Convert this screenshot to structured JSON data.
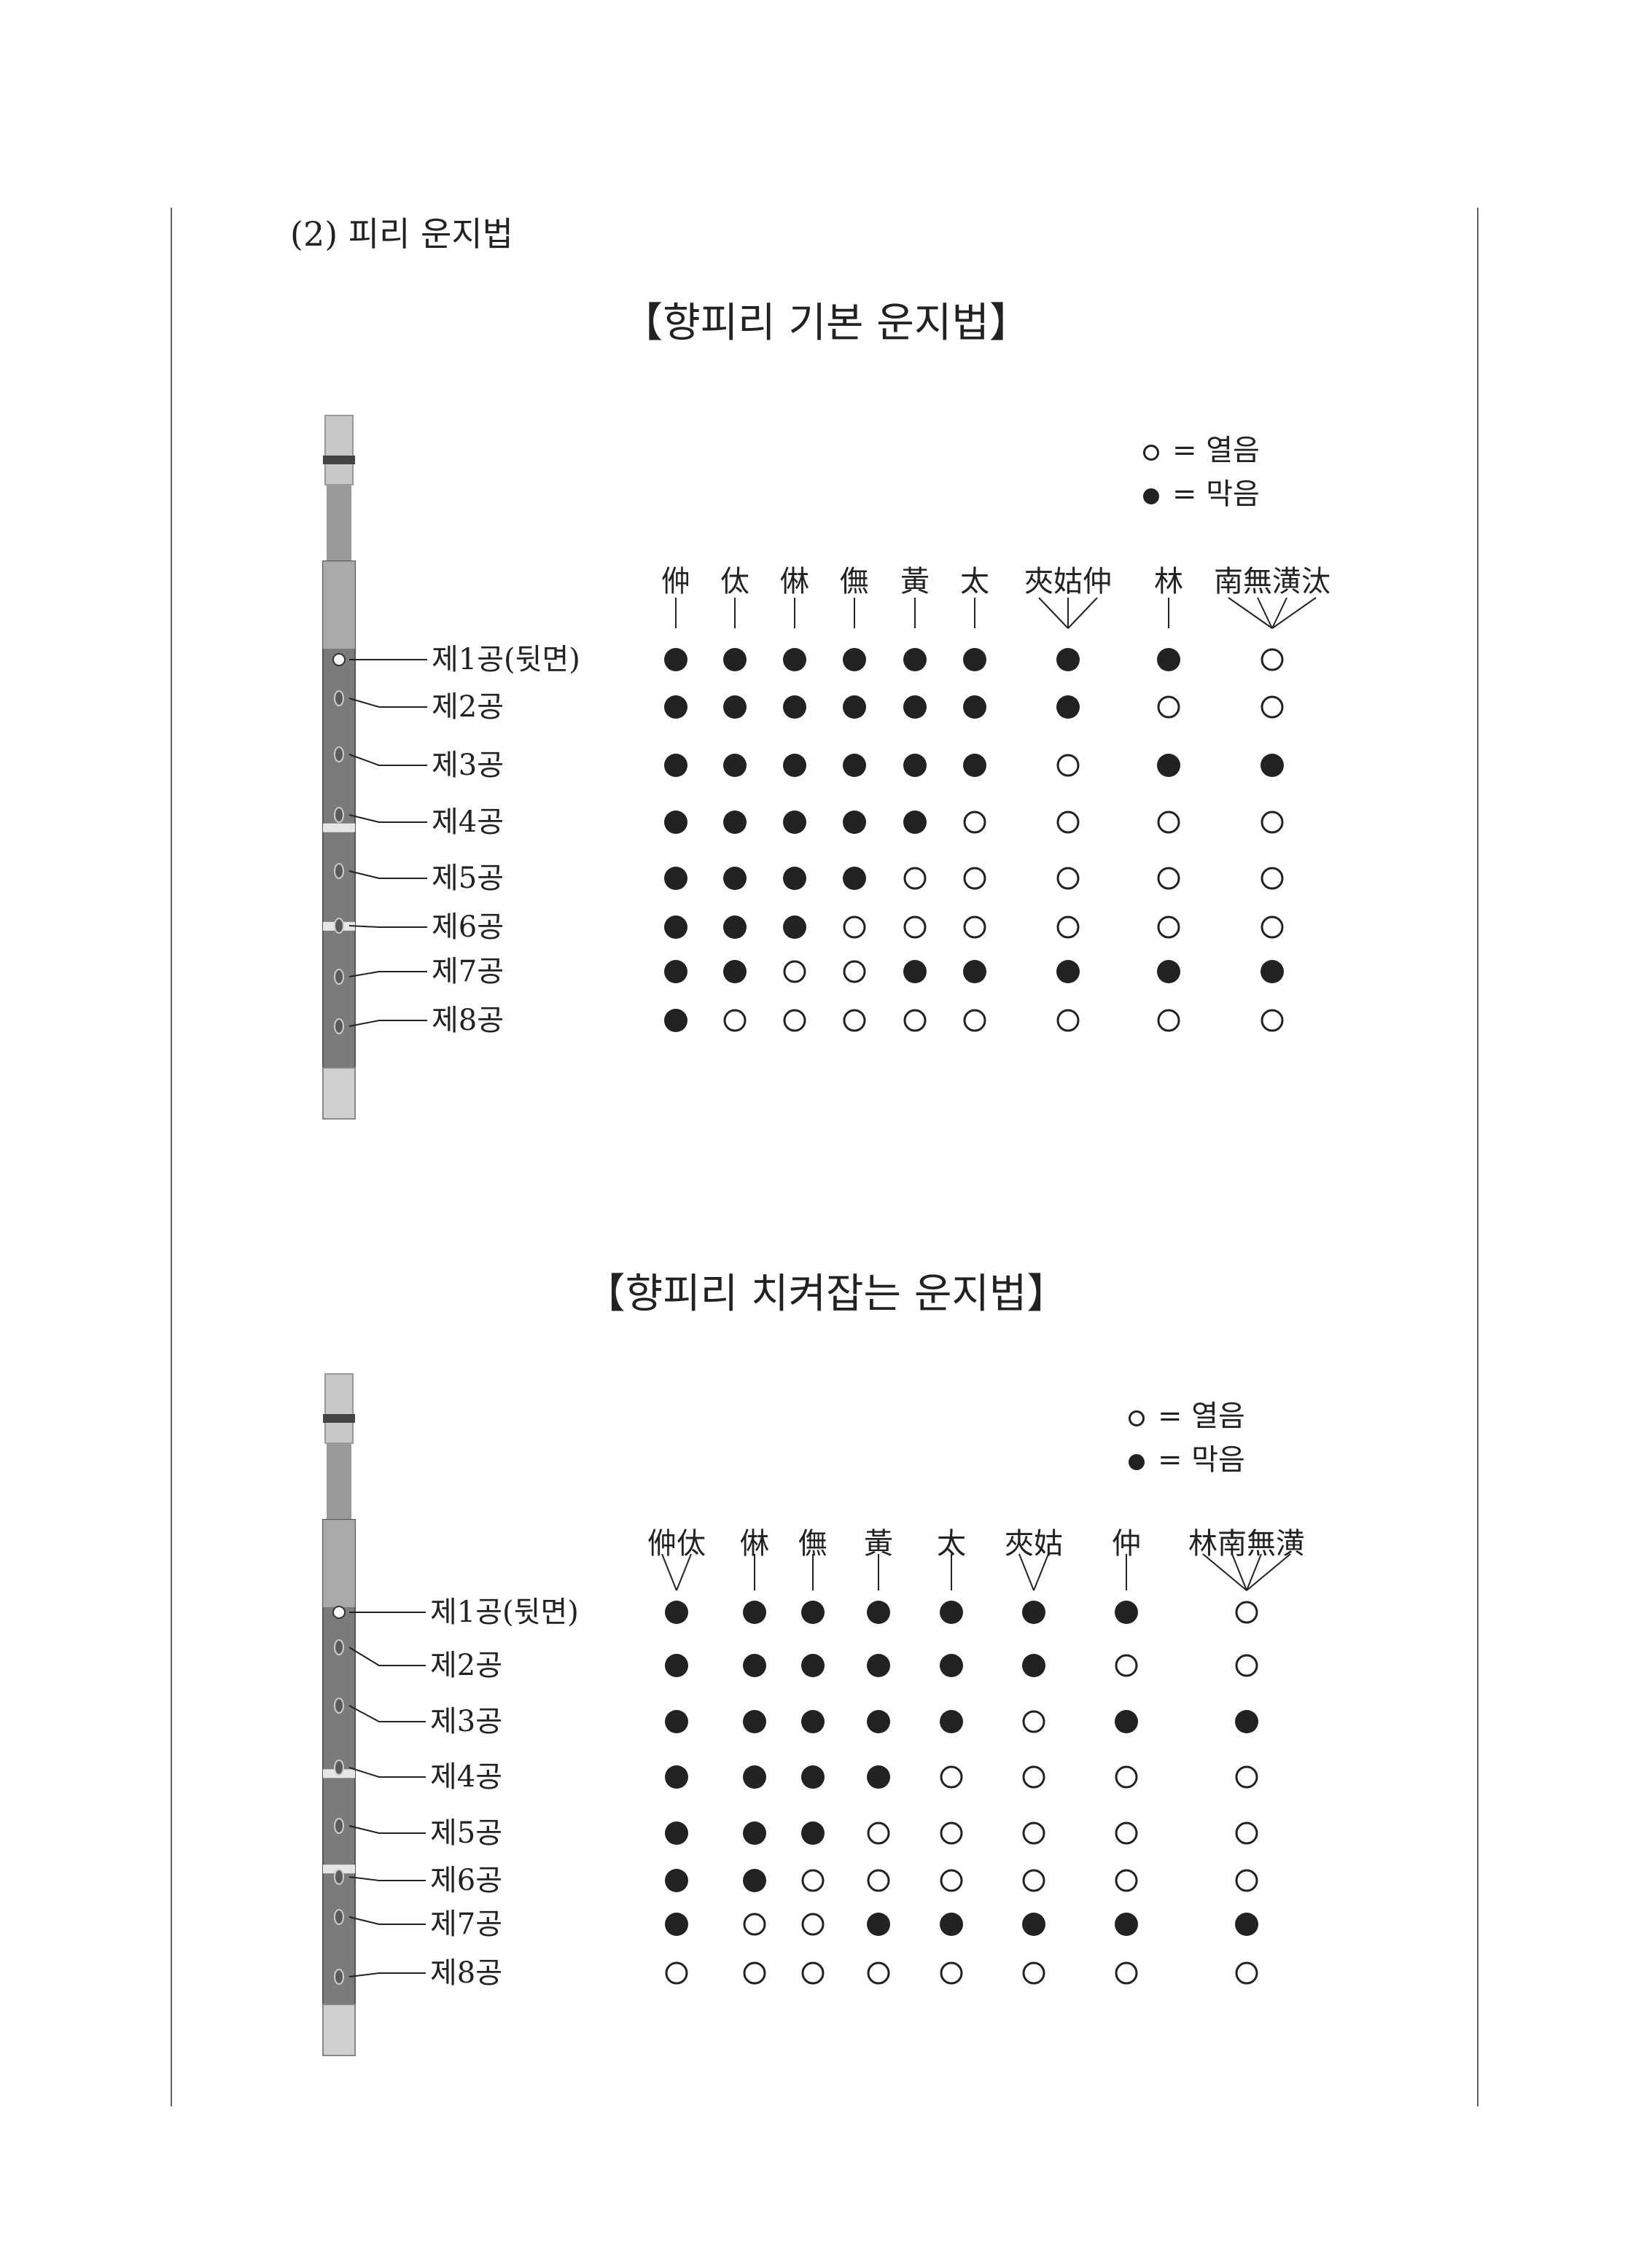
{
  "section_heading": "(2) 피리 운지법",
  "legend": {
    "open_label": "= 열음",
    "closed_label": "= 막음"
  },
  "hole_labels": [
    "제1공(뒷면)",
    "제2공",
    "제3공",
    "제4공",
    "제5공",
    "제6공",
    "제7공",
    "제8공"
  ],
  "colors": {
    "ink": "#222222",
    "page": "#ffffff"
  },
  "chart_data": [
    {
      "type": "table",
      "title": "【향피리 기본 운지법】",
      "rows": [
        "제1공(뒷면)",
        "제2공",
        "제3공",
        "제4공",
        "제5공",
        "제6공",
        "제7공",
        "제8공"
      ],
      "cell_values": {
        "1": "막음",
        "0": "열음"
      },
      "columns": [
        {
          "label": "㑖",
          "holes": [
            1,
            1,
            1,
            1,
            1,
            1,
            1,
            1
          ]
        },
        {
          "label": "㑀",
          "holes": [
            1,
            1,
            1,
            1,
            1,
            1,
            1,
            0
          ]
        },
        {
          "label": "㑣",
          "holes": [
            1,
            1,
            1,
            1,
            1,
            1,
            0,
            0
          ]
        },
        {
          "label": "㒇",
          "holes": [
            1,
            1,
            1,
            1,
            1,
            0,
            0,
            0
          ]
        },
        {
          "label": "黃",
          "holes": [
            1,
            1,
            1,
            1,
            0,
            0,
            1,
            0
          ]
        },
        {
          "label": "太",
          "holes": [
            1,
            1,
            1,
            0,
            0,
            0,
            1,
            0
          ]
        },
        {
          "label": "夾姑仲",
          "holes": [
            1,
            1,
            0,
            0,
            0,
            0,
            1,
            0
          ]
        },
        {
          "label": "林",
          "holes": [
            1,
            0,
            1,
            0,
            0,
            0,
            1,
            0
          ]
        },
        {
          "label": "南無潢汰",
          "holes": [
            0,
            0,
            1,
            0,
            0,
            0,
            1,
            0
          ]
        }
      ]
    },
    {
      "type": "table",
      "title": "【향피리 치켜잡는 운지법】",
      "rows": [
        "제1공(뒷면)",
        "제2공",
        "제3공",
        "제4공",
        "제5공",
        "제6공",
        "제7공",
        "제8공"
      ],
      "cell_values": {
        "1": "막음",
        "0": "열음"
      },
      "columns": [
        {
          "label": "㑖㑀",
          "holes": [
            1,
            1,
            1,
            1,
            1,
            1,
            1,
            0
          ]
        },
        {
          "label": "㑣",
          "holes": [
            1,
            1,
            1,
            1,
            1,
            1,
            0,
            0
          ]
        },
        {
          "label": "㒇",
          "holes": [
            1,
            1,
            1,
            1,
            1,
            0,
            0,
            0
          ]
        },
        {
          "label": "黃",
          "holes": [
            1,
            1,
            1,
            1,
            0,
            0,
            1,
            0
          ]
        },
        {
          "label": "太",
          "holes": [
            1,
            1,
            1,
            0,
            0,
            0,
            1,
            0
          ]
        },
        {
          "label": "夾姑",
          "holes": [
            1,
            1,
            0,
            0,
            0,
            0,
            1,
            0
          ]
        },
        {
          "label": "仲",
          "holes": [
            1,
            0,
            1,
            0,
            0,
            0,
            1,
            0
          ]
        },
        {
          "label": "林南無潢",
          "holes": [
            0,
            0,
            1,
            0,
            0,
            0,
            1,
            0
          ]
        }
      ]
    }
  ]
}
